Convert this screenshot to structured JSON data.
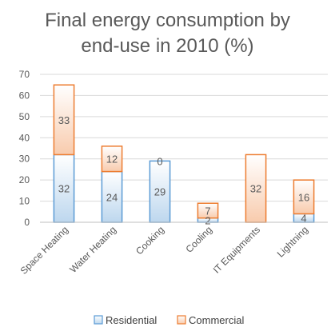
{
  "chart_data": {
    "type": "bar",
    "stacked": true,
    "title_lines": [
      "Final energy consumption by",
      "end-use in 2010 (%)"
    ],
    "categories": [
      "Space Heating",
      "Water Heating",
      "Cooking",
      "Cooling",
      "IT Equipments",
      "Lightning"
    ],
    "series": [
      {
        "name": "Residential",
        "values": [
          32,
          24,
          29,
          2,
          0,
          4
        ],
        "color": "#5b9bd5",
        "fill_top": "#ffffff",
        "fill_bottom": "#bdd7ee"
      },
      {
        "name": "Commercial",
        "values": [
          33,
          12,
          0,
          7,
          32,
          16
        ],
        "color": "#ed7d31",
        "fill_top": "#ffffff",
        "fill_bottom": "#f8cbad"
      }
    ],
    "data_labels": [
      [
        "32",
        "24",
        "29",
        "2",
        "",
        "4"
      ],
      [
        "33",
        "12",
        "0",
        "7",
        "32",
        "16"
      ]
    ],
    "ylim": [
      0,
      70
    ],
    "yticks": [
      0,
      10,
      20,
      30,
      40,
      50,
      60,
      70
    ],
    "grid": true,
    "legend_position": "bottom"
  }
}
